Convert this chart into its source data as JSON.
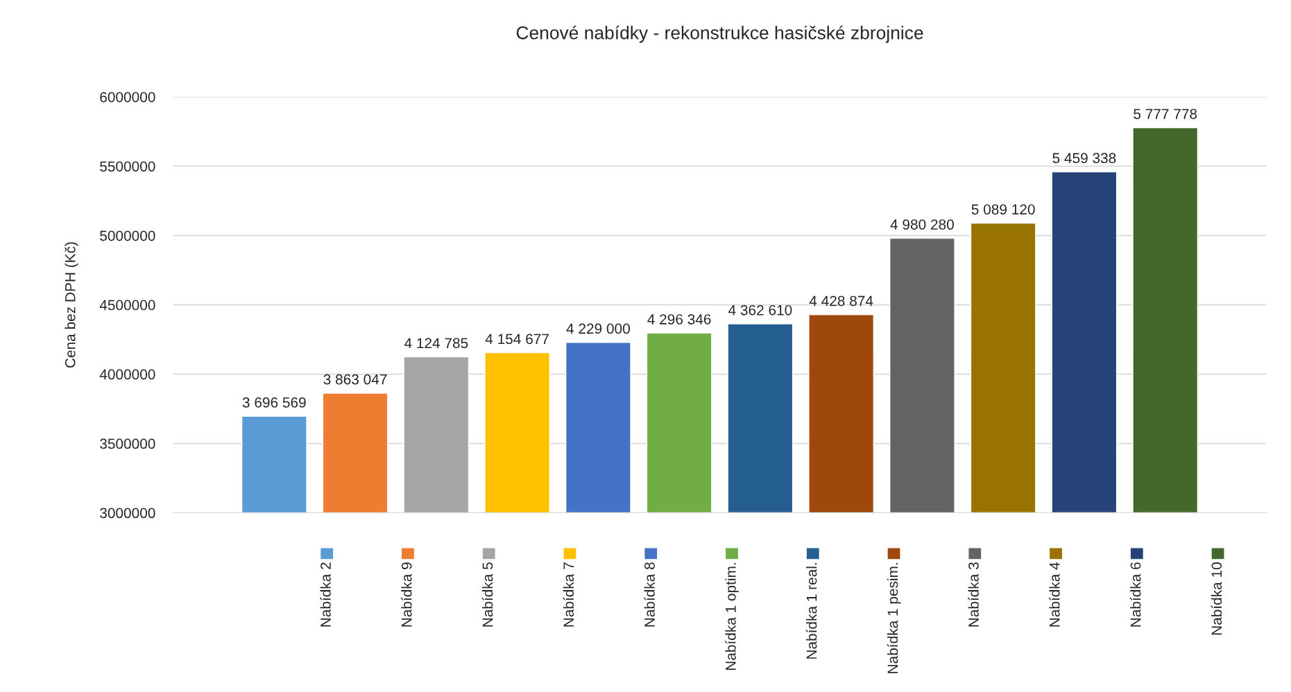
{
  "chart_data": {
    "type": "bar",
    "title": "Cenové nabídky - rekonstrukce hasičské zbrojnice",
    "ylabel": "Cena bez DPH (Kč)",
    "categories": [
      null
    ],
    "series": [
      {
        "name": "Nabídka 2",
        "color": "#5b9bd5",
        "values": [
          3696569
        ],
        "value_labels": [
          "3 696 569"
        ]
      },
      {
        "name": "Nabídka 9",
        "color": "#ed7d31",
        "values": [
          3863047
        ],
        "value_labels": [
          "3 863 047"
        ]
      },
      {
        "name": "Nabídka 5",
        "color": "#a5a5a5",
        "values": [
          4124785
        ],
        "value_labels": [
          "4 124 785"
        ]
      },
      {
        "name": "Nabídka 7",
        "color": "#ffc000",
        "values": [
          4154677
        ],
        "value_labels": [
          "4 154 677"
        ]
      },
      {
        "name": "Nabídka 8",
        "color": "#4472c4",
        "values": [
          4229000
        ],
        "value_labels": [
          "4 229 000"
        ]
      },
      {
        "name": "Nabídka 1 optim.",
        "color": "#70ad47",
        "values": [
          4296346
        ],
        "value_labels": [
          "4 296 346"
        ]
      },
      {
        "name": "Nabídka 1 real.",
        "color": "#255e91",
        "values": [
          4362610
        ],
        "value_labels": [
          "4 362 610"
        ]
      },
      {
        "name": "Nabídka 1 pesim.",
        "color": "#9e480e",
        "values": [
          4428874
        ],
        "value_labels": [
          "4 428 874"
        ]
      },
      {
        "name": "Nabídka 3",
        "color": "#636363",
        "values": [
          4980280
        ],
        "value_labels": [
          "4 980 280"
        ]
      },
      {
        "name": "Nabídka 4",
        "color": "#997300",
        "values": [
          5089120
        ],
        "value_labels": [
          "5 089 120"
        ]
      },
      {
        "name": "Nabídka 6",
        "color": "#264478",
        "values": [
          5459338
        ],
        "value_labels": [
          "5 459 338"
        ]
      },
      {
        "name": "Nabídka 10",
        "color": "#43682b",
        "values": [
          5777778
        ],
        "value_labels": [
          "5 777 778"
        ]
      }
    ],
    "ylim": [
      3000000,
      6000000
    ],
    "yticks": [
      3000000,
      3500000,
      4000000,
      4500000,
      5000000,
      5500000,
      6000000
    ],
    "grid": "y",
    "legend": "bottom"
  }
}
